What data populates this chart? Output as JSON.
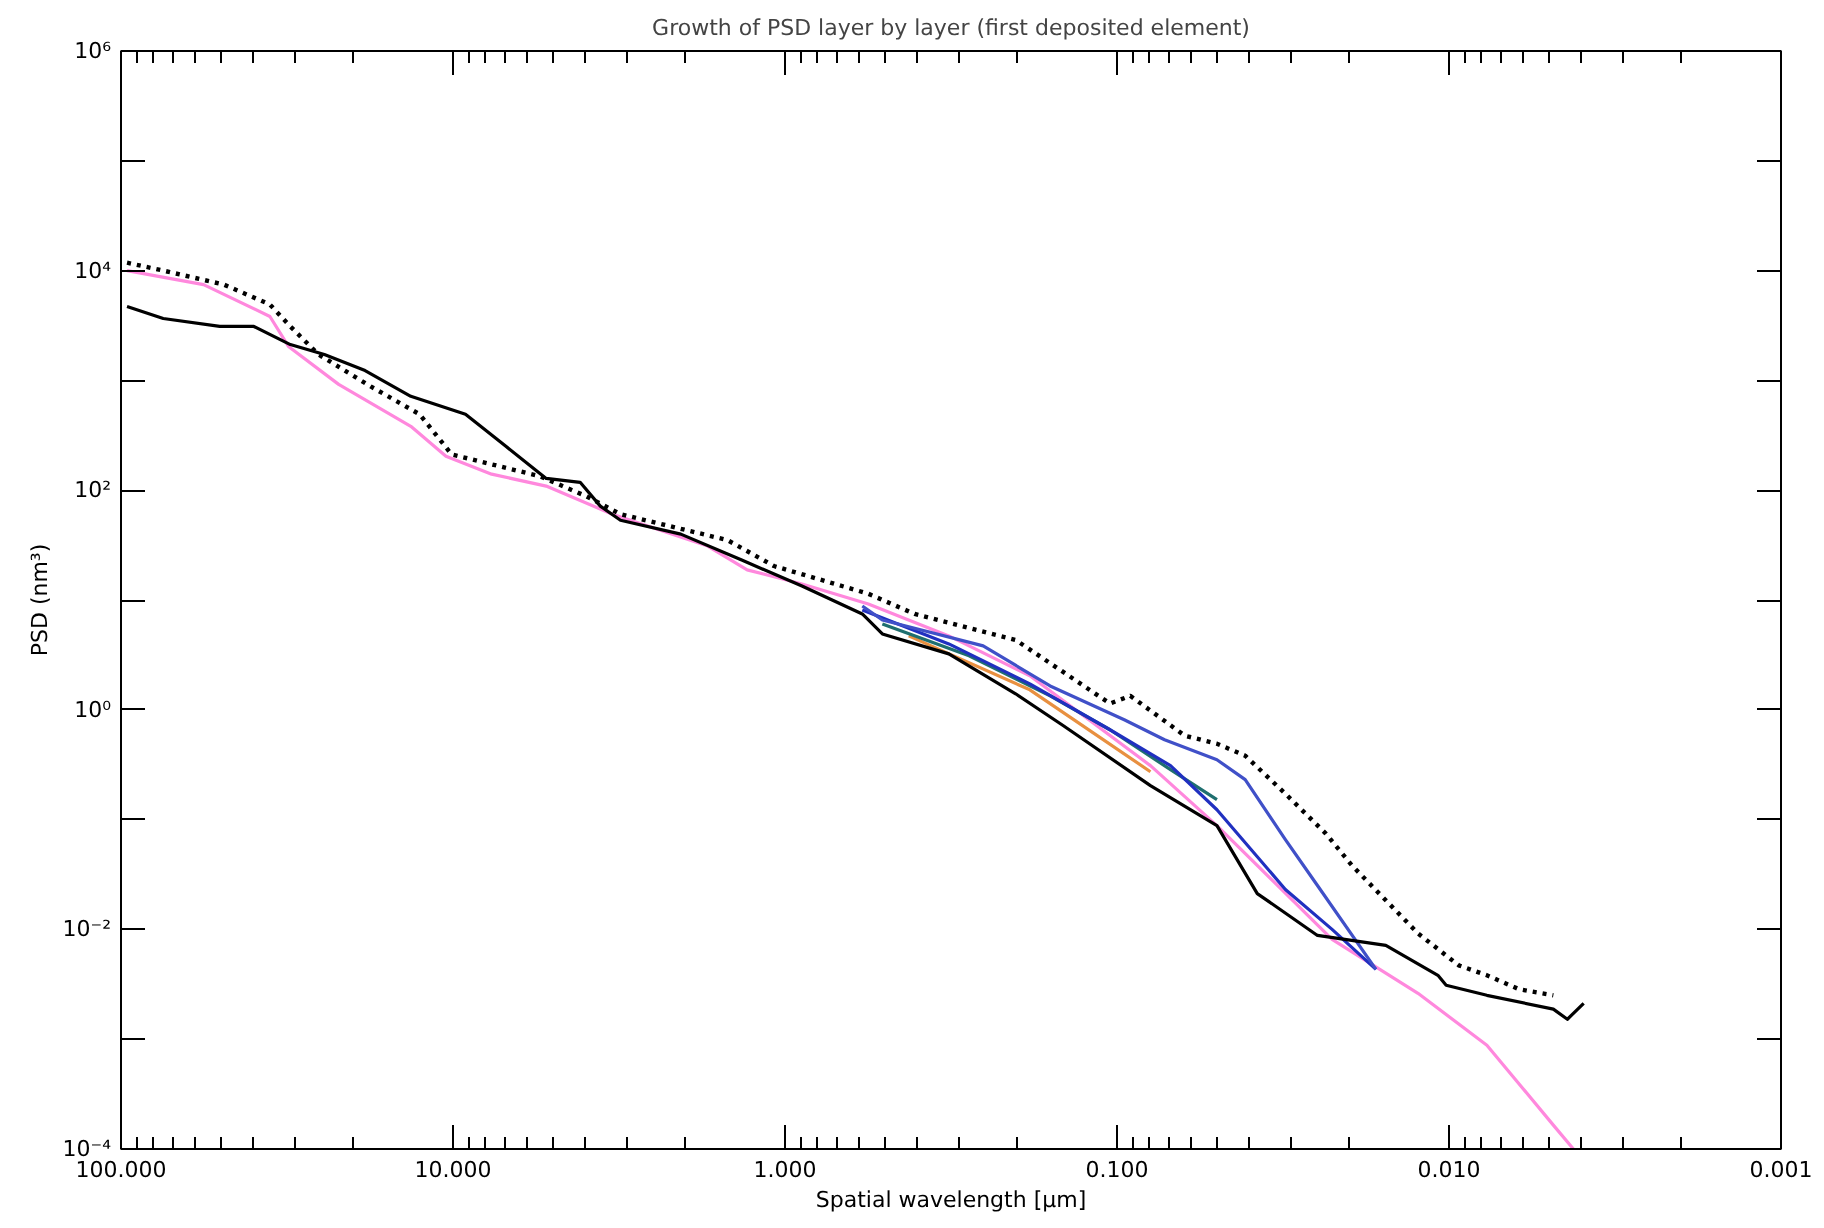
{
  "chart_data": {
    "type": "line",
    "title": "Growth of PSD layer by layer (first deposited element)",
    "xlabel": "Spatial wavelength [μm]",
    "ylabel": "PSD (nm³)",
    "log": "xy",
    "grid": false,
    "xlim": [
      100,
      0.001
    ],
    "ylim": [
      0.0001,
      1000000
    ],
    "xticks": [
      {
        "value": 100,
        "label": "100.000"
      },
      {
        "value": 10,
        "label": "10.000"
      },
      {
        "value": 1,
        "label": "1.000"
      },
      {
        "value": 0.1,
        "label": "0.100"
      },
      {
        "value": 0.01,
        "label": "0.010"
      },
      {
        "value": 0.001,
        "label": "0.001"
      }
    ],
    "yticks": [
      {
        "value": 0.0001,
        "label": "10⁻⁴"
      },
      {
        "value": 0.001,
        "label": null
      },
      {
        "value": 0.01,
        "label": "10⁻²"
      },
      {
        "value": 0.1,
        "label": null
      },
      {
        "value": 1,
        "label": "10⁰"
      },
      {
        "value": 10,
        "label": null
      },
      {
        "value": 100,
        "label": "10²"
      },
      {
        "value": 1000,
        "label": null
      },
      {
        "value": 10000,
        "label": "10⁴"
      },
      {
        "value": 100000,
        "label": null
      },
      {
        "value": 1000000,
        "label": "10⁶"
      }
    ],
    "series": [
      {
        "color": "#ff88dd",
        "line_style": "solid",
        "x": [
          95.9,
          56.4,
          35.6,
          31.3,
          22.1,
          13.4,
          10.5,
          7.65,
          5.24,
          3.31,
          1.71,
          1.3,
          0.889,
          0.561,
          0.321,
          0.183,
          0.0793,
          0.05,
          0.0225,
          0.0124,
          0.00769,
          0.00485,
          0.00422
        ],
        "values": [
          10000,
          7460,
          3820,
          2040,
          920,
          382,
          204,
          140,
          109,
          60.5,
          31.0,
          18.8,
          14.0,
          9.2,
          4.71,
          2.04,
          0.31,
          0.0881,
          0.00811,
          0.00262,
          0.000881,
          0.000165,
          0.0001
        ]
      },
      {
        "color": "#e89040",
        "line_style": "solid",
        "x": [
          0.424,
          0.183,
          0.0793
        ],
        "values": [
          4.71,
          1.52,
          0.273
        ]
      },
      {
        "color": "#1f6f6f",
        "line_style": "solid",
        "x": [
          0.509,
          0.279,
          0.159,
          0.105,
          0.069,
          0.05
        ],
        "values": [
          6.05,
          3.1,
          1.34,
          0.658,
          0.285,
          0.152
        ]
      },
      {
        "color": "#2030c0",
        "line_style": "solid",
        "x": [
          0.585,
          0.321,
          0.183,
          0.105,
          0.069,
          0.05,
          0.0311,
          0.0225,
          0.0166
        ],
        "values": [
          8.11,
          3.98,
          1.72,
          0.658,
          0.31,
          0.123,
          0.0231,
          0.01,
          0.00433
        ]
      },
      {
        "color": "#4050c8",
        "line_style": "solid",
        "x": [
          0.585,
          0.509,
          0.253,
          0.159,
          0.0951,
          0.0719,
          0.05,
          0.0411,
          0.0311,
          0.0249,
          0.0166
        ],
        "values": [
          8.81,
          6.58,
          3.82,
          1.65,
          0.811,
          0.533,
          0.351,
          0.231,
          0.0658,
          0.0251,
          0.00433
        ]
      },
      {
        "color": "#000000",
        "line_style": "dotted",
        "x": [
          95.9,
          74.6,
          49.0,
          35.6,
          30.9,
          25.4,
          17.7,
          12.6,
          10.1,
          7.65,
          5.47,
          3.97,
          3.13,
          1.49,
          1.08,
          0.561,
          0.407,
          0.202,
          0.105,
          0.0912,
          0.0625,
          0.05,
          0.0411,
          0.0311,
          0.0235,
          0.0196,
          0.0124,
          0.00935,
          0.00769,
          0.00615,
          0.00485
        ],
        "values": [
          11800,
          10000,
          7460,
          4910,
          3100,
          1720,
          881,
          491,
          212,
          172,
          134,
          88.1,
          60.5,
          35.1,
          20.4,
          11.4,
          7.46,
          4.33,
          1.14,
          1.34,
          0.581,
          0.491,
          0.382,
          0.172,
          0.0746,
          0.0382,
          0.0092,
          0.00471,
          0.00382,
          0.00285,
          0.00251
        ]
      },
      {
        "color": "#000000",
        "line_style": "solid",
        "x": [
          95.9,
          74.6,
          50.4,
          39.8,
          30.9,
          24.4,
          18.4,
          13.4,
          9.17,
          6.93,
          5.24,
          4.14,
          3.6,
          3.13,
          2.06,
          1.35,
          0.889,
          0.585,
          0.509,
          0.321,
          0.202,
          0.145,
          0.0793,
          0.05,
          0.0378,
          0.0249,
          0.0155,
          0.0108,
          0.0102,
          0.00769,
          0.00485,
          0.0044,
          0.00393
        ],
        "values": [
          4710,
          3660,
          3100,
          3100,
          2120,
          1720,
          1230,
          716,
          491,
          251,
          128,
          118,
          71.6,
          53.3,
          39.8,
          23.1,
          13.4,
          7.46,
          4.91,
          3.23,
          1.4,
          0.716,
          0.204,
          0.0881,
          0.0212,
          0.00881,
          0.00716,
          0.00382,
          0.0031,
          0.00251,
          0.00188,
          0.00152,
          0.00212
        ]
      }
    ]
  }
}
